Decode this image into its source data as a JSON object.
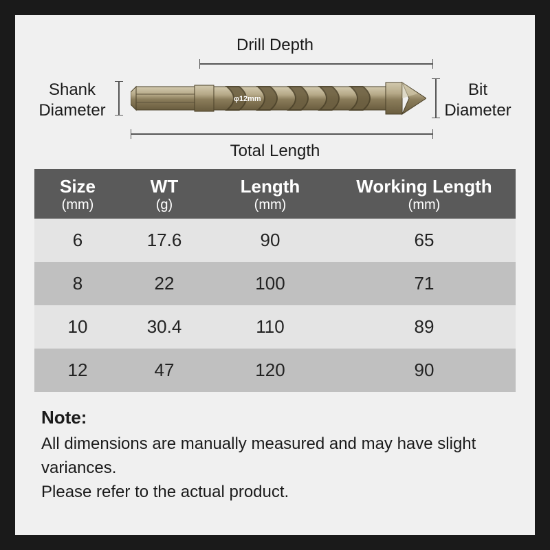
{
  "diagram": {
    "drill_depth": "Drill Depth",
    "total_length": "Total Length",
    "shank_diameter": "Shank Diameter",
    "bit_diameter": "Bit Diameter",
    "bit_text": "φ12mm",
    "colors": {
      "metal_light": "#b5a887",
      "metal_mid": "#8a7c5a",
      "metal_dark": "#6a5d3f",
      "metal_hi": "#d2c9ae",
      "bracket": "#555555"
    }
  },
  "table": {
    "columns": [
      {
        "title": "Size",
        "unit": "(mm)",
        "width": "18%"
      },
      {
        "title": "WT",
        "unit": "(g)",
        "width": "18%"
      },
      {
        "title": "Length",
        "unit": "(mm)",
        "width": "26%"
      },
      {
        "title": "Working Length",
        "unit": "(mm)",
        "width": "38%"
      }
    ],
    "rows": [
      [
        "6",
        "17.6",
        "90",
        "65"
      ],
      [
        "8",
        "22",
        "100",
        "71"
      ],
      [
        "10",
        "30.4",
        "110",
        "89"
      ],
      [
        "12",
        "47",
        "120",
        "90"
      ]
    ],
    "header_bg": "#5a5a5a",
    "row_odd_bg": "#e4e4e4",
    "row_even_bg": "#c0c0c0"
  },
  "note": {
    "title": "Note:",
    "line1": "All dimensions are manually measured and may have slight variances.",
    "line2": "Please refer to the actual product."
  }
}
